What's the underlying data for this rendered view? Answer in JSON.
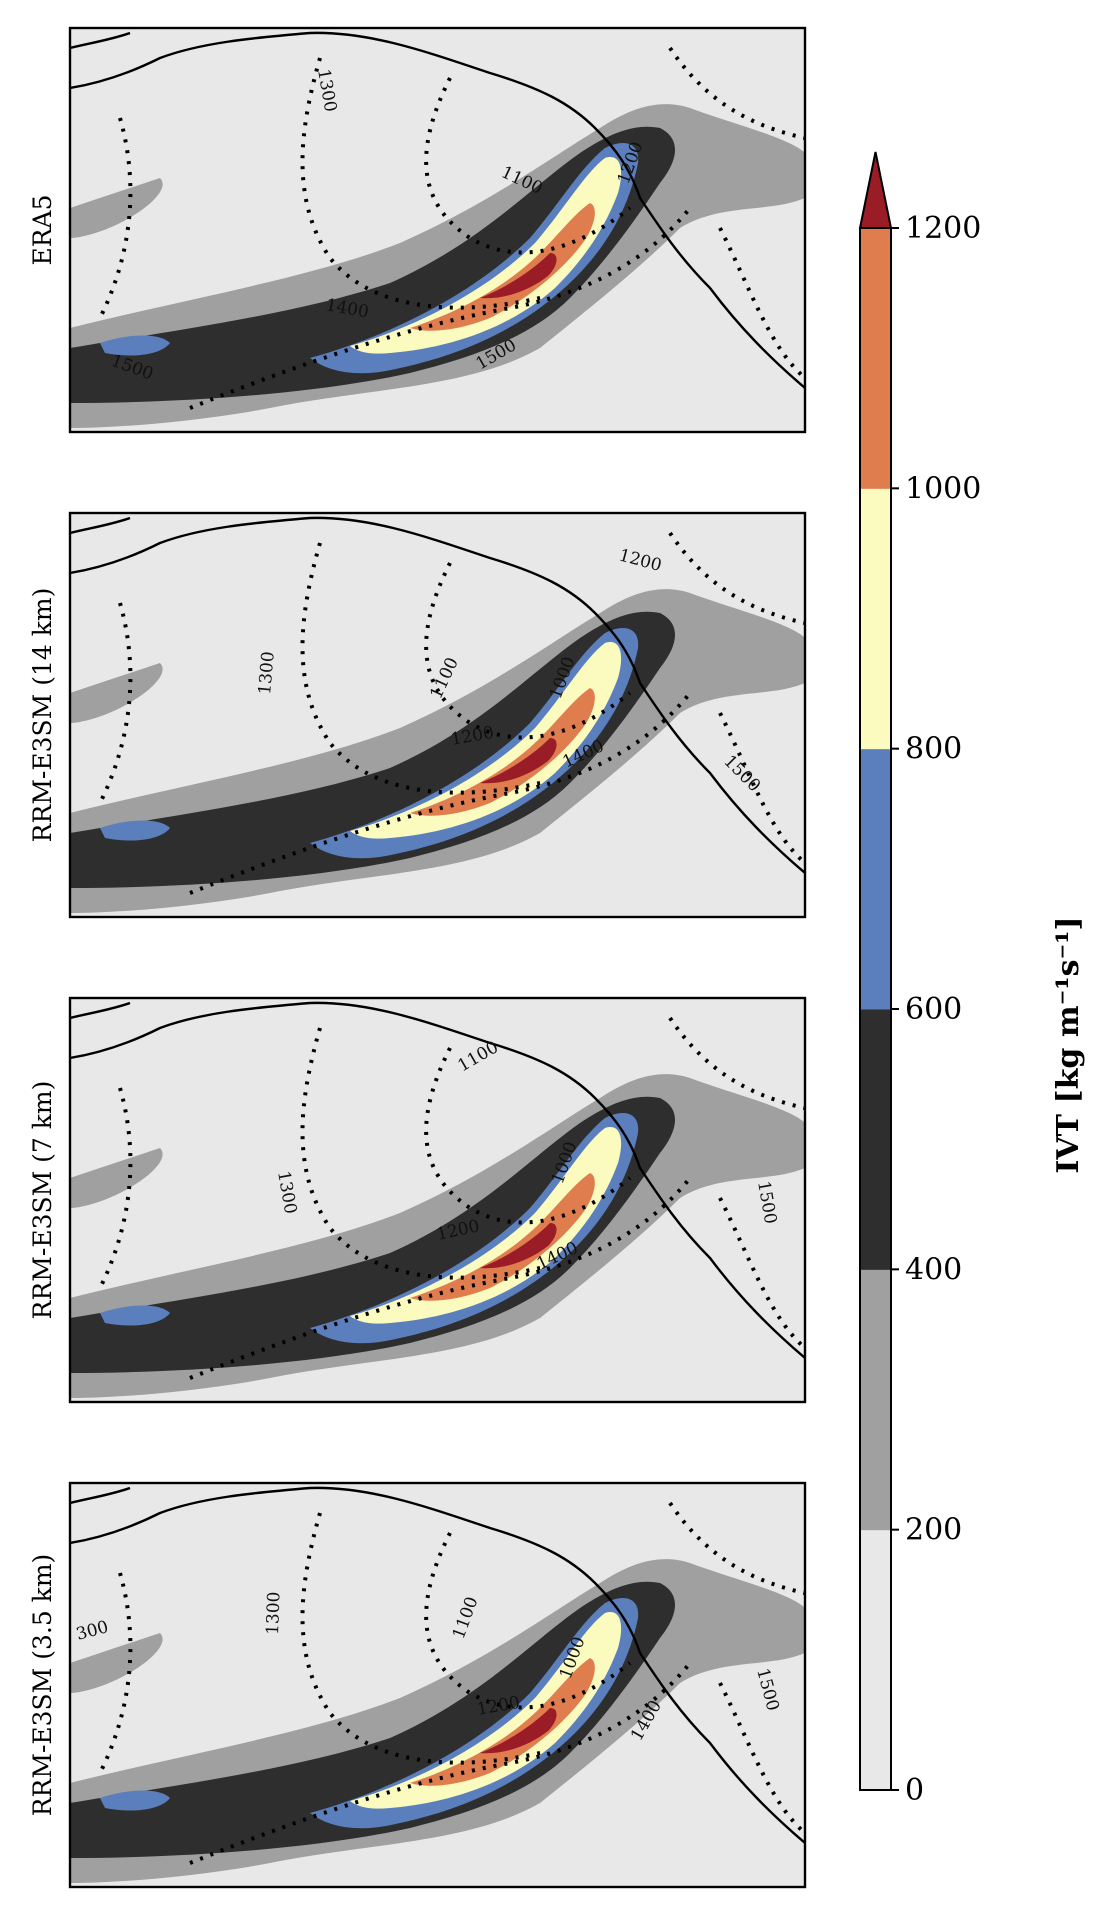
{
  "figure": {
    "panels": [
      {
        "label": "ERA5",
        "contour_labels": [
          "1300",
          "1100",
          "1200",
          "1400",
          "1500",
          "1500"
        ]
      },
      {
        "label": "RRM-E3SM (14 km)",
        "contour_labels": [
          "1200",
          "1300",
          "1100",
          "1000",
          "1200",
          "1400",
          "1500"
        ]
      },
      {
        "label": "RRM-E3SM (7 km)",
        "contour_labels": [
          "1100",
          "1300",
          "1000",
          "1200",
          "1400",
          "1500"
        ]
      },
      {
        "label": "RRM-E3SM (3.5 km)",
        "contour_labels": [
          "300",
          "1300",
          "1100",
          "1000",
          "1200",
          "1400",
          "1500"
        ]
      }
    ],
    "colorbar": {
      "label": "IVT [kg m⁻¹s⁻¹]",
      "ticks": [
        "0",
        "200",
        "400",
        "600",
        "800",
        "1000",
        "1200"
      ],
      "levels": [
        0,
        200,
        400,
        600,
        800,
        1000,
        1200
      ],
      "colors": [
        "#e8e8e8",
        "#a0a0a0",
        "#2e2e2e",
        "#5b7fbd",
        "#fbfbc0",
        "#e07d4e",
        "#9a1c26"
      ],
      "extend": "max"
    }
  }
}
